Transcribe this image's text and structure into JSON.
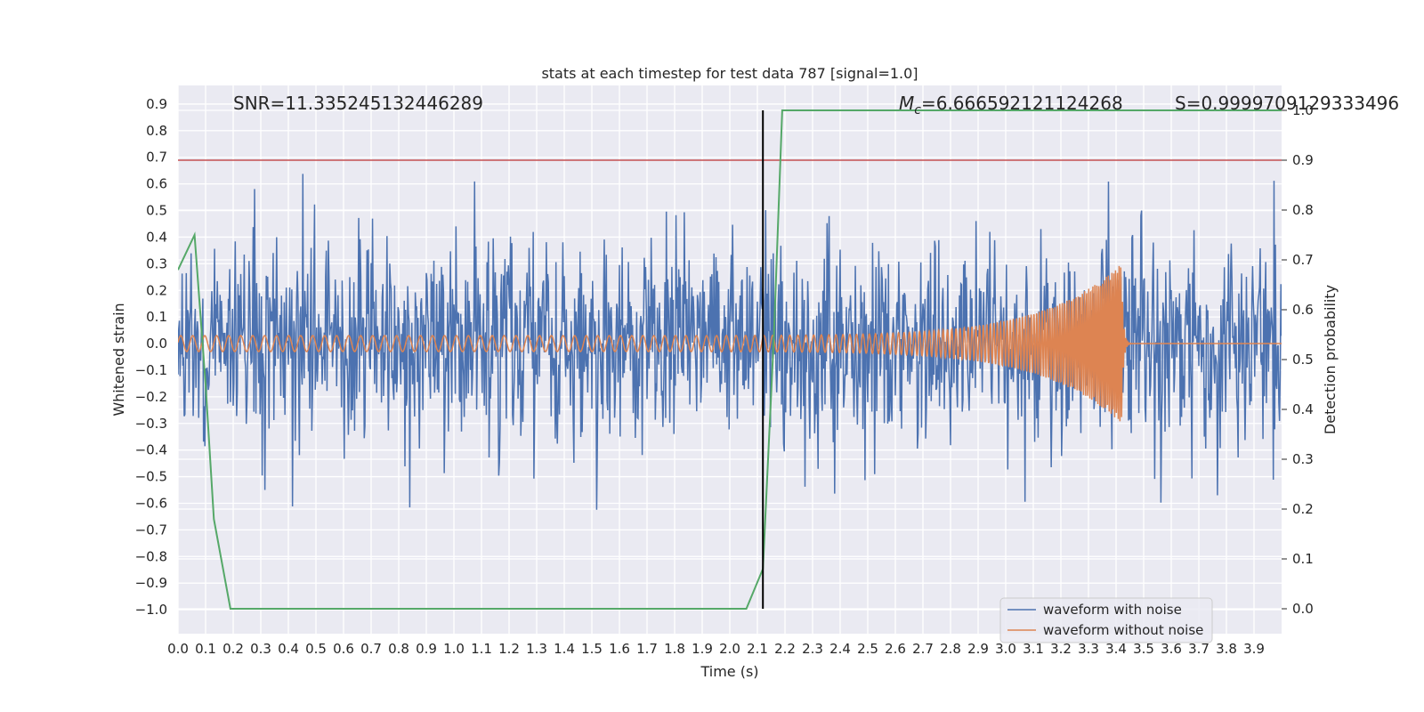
{
  "chart_data": {
    "type": "line",
    "title": "stats at each timestep for test data 787 [signal=1.0]",
    "xlabel": "Time (s)",
    "ylabel": "Whitened strain",
    "y2label": "Detection probability",
    "xlim": [
      0.0,
      4.0
    ],
    "ylim": [
      -1.09,
      0.97
    ],
    "y2lim": [
      -0.05,
      1.05
    ],
    "x_ticks": [
      "0.0",
      "0.1",
      "0.2",
      "0.3",
      "0.4",
      "0.5",
      "0.6",
      "0.7",
      "0.8",
      "0.9",
      "1.0",
      "1.1",
      "1.2",
      "1.3",
      "1.4",
      "1.5",
      "1.6",
      "1.7",
      "1.8",
      "1.9",
      "2.0",
      "2.1",
      "2.2",
      "2.3",
      "2.4",
      "2.5",
      "2.6",
      "2.7",
      "2.8",
      "2.9",
      "3.0",
      "3.1",
      "3.2",
      "3.3",
      "3.4",
      "3.5",
      "3.6",
      "3.7",
      "3.8",
      "3.9"
    ],
    "y_ticks": [
      "0.9",
      "0.8",
      "0.7",
      "0.6",
      "0.5",
      "0.4",
      "0.3",
      "0.2",
      "0.1",
      "0.0",
      "−0.1",
      "−0.2",
      "−0.3",
      "−0.4",
      "−0.5",
      "−0.6",
      "−0.7",
      "−0.8",
      "−0.9",
      "−1.0"
    ],
    "y2_ticks": [
      "1.0",
      "0.9",
      "0.8",
      "0.7",
      "0.6",
      "0.5",
      "0.4",
      "0.3",
      "0.2",
      "0.1",
      "0.0"
    ],
    "annotations": {
      "snr": "SNR=11.335245132446289",
      "mc_symbol": "M",
      "mc_sub": "c",
      "mc_value": "=6.666592121124268",
      "s": "S=0.9999709129333496"
    },
    "threshold_y2": 0.9,
    "marker_time": 2.12,
    "series": [
      {
        "name": "waveform with noise",
        "color": "#4c72b0",
        "axis": "left",
        "noise_std": 0.2,
        "seed": 787
      },
      {
        "name": "waveform without noise",
        "color": "#dd8452",
        "axis": "left",
        "chirp": {
          "start_amp": 0.03,
          "peak_amp": 0.3,
          "merger_time": 3.42,
          "f0": 23,
          "f1": 160
        }
      },
      {
        "name": "detection probability",
        "color": "#55a868",
        "axis": "right",
        "x": [
          0.0,
          0.06,
          0.1,
          0.13,
          0.19,
          2.06,
          2.12,
          2.16,
          2.19,
          4.0
        ],
        "y": [
          0.68,
          0.75,
          0.45,
          0.18,
          0.0,
          0.0,
          0.08,
          0.55,
          1.0,
          1.0
        ]
      }
    ],
    "threshold_color": "#c44e52",
    "marker_color": "#000000"
  }
}
